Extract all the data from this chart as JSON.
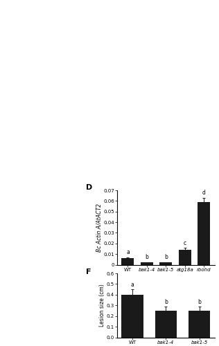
{
  "panel_D": {
    "label": "D",
    "categories": [
      "WT",
      "bak1-4",
      "bak1-5",
      "atg18a",
      "rbohd"
    ],
    "values": [
      0.006,
      0.002,
      0.002,
      0.014,
      0.059
    ],
    "errors": [
      0.001,
      0.0005,
      0.0005,
      0.002,
      0.004
    ],
    "letters": [
      "a",
      "b",
      "b",
      "c",
      "d"
    ],
    "ylabel": "Bc Actin A/AtACT2",
    "ylim": [
      0,
      0.07
    ],
    "yticks": [
      0,
      0.01,
      0.02,
      0.03,
      0.04,
      0.05,
      0.06,
      0.07
    ],
    "bar_color": "#1a1a1a",
    "error_color": "#1a1a1a"
  },
  "panel_F": {
    "label": "F",
    "categories": [
      "WT",
      "bak1-4",
      "bak1-5"
    ],
    "values": [
      0.4,
      0.25,
      0.25
    ],
    "errors": [
      0.05,
      0.04,
      0.04
    ],
    "letters": [
      "a",
      "b",
      "b"
    ],
    "ylabel": "Lesion size (cm)",
    "ylim": [
      0,
      0.6
    ],
    "yticks": [
      0,
      0.1,
      0.2,
      0.3,
      0.4,
      0.5,
      0.6
    ],
    "bar_color": "#1a1a1a",
    "error_color": "#1a1a1a"
  },
  "figsize": [
    3.16,
    5.0
  ],
  "dpi": 100,
  "font_size": 5.5,
  "label_font_size": 8,
  "tick_font_size": 5.0,
  "bg_color": "#ffffff"
}
